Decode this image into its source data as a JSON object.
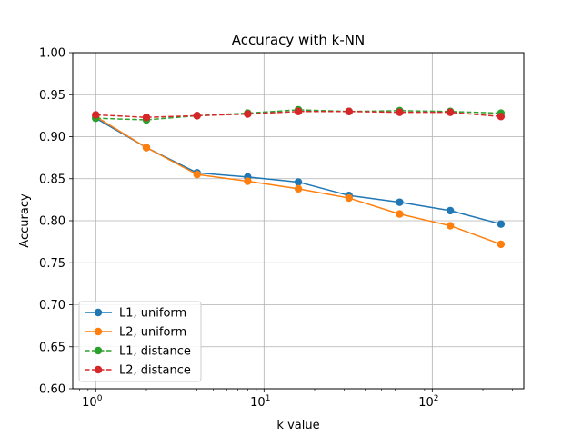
{
  "chart_data": {
    "type": "line",
    "title": "Accuracy with k-NN",
    "xlabel": "k value",
    "ylabel": "Accuracy",
    "xscale": "log",
    "xlim": [
      0.73,
      350
    ],
    "ylim": [
      0.6,
      1.0
    ],
    "grid": true,
    "legend_position": "lower-left",
    "x": [
      1,
      2,
      4,
      8,
      16,
      32,
      64,
      128,
      256
    ],
    "x_ticks": [
      {
        "value": 1,
        "base": "10",
        "exp": "0"
      },
      {
        "value": 10,
        "base": "10",
        "exp": "1"
      },
      {
        "value": 100,
        "base": "10",
        "exp": "2"
      }
    ],
    "y_ticks": [
      {
        "value": 0.6,
        "label": "0.60"
      },
      {
        "value": 0.65,
        "label": "0.65"
      },
      {
        "value": 0.7,
        "label": "0.70"
      },
      {
        "value": 0.75,
        "label": "0.75"
      },
      {
        "value": 0.8,
        "label": "0.80"
      },
      {
        "value": 0.85,
        "label": "0.85"
      },
      {
        "value": 0.9,
        "label": "0.90"
      },
      {
        "value": 0.95,
        "label": "0.95"
      },
      {
        "value": 1.0,
        "label": "1.00"
      }
    ],
    "series": [
      {
        "name": "L1, uniform",
        "color": "#1f77b4",
        "dashed": false,
        "values": [
          0.922,
          0.887,
          0.857,
          0.852,
          0.846,
          0.83,
          0.822,
          0.812,
          0.796
        ]
      },
      {
        "name": "L2, uniform",
        "color": "#ff7f0e",
        "dashed": false,
        "values": [
          0.924,
          0.887,
          0.855,
          0.847,
          0.838,
          0.827,
          0.808,
          0.794,
          0.772
        ]
      },
      {
        "name": "L1, distance",
        "color": "#2ca02c",
        "dashed": true,
        "values": [
          0.922,
          0.92,
          0.925,
          0.928,
          0.932,
          0.93,
          0.931,
          0.93,
          0.928
        ]
      },
      {
        "name": "L2, distance",
        "color": "#d62728",
        "dashed": true,
        "values": [
          0.926,
          0.923,
          0.925,
          0.927,
          0.93,
          0.93,
          0.929,
          0.929,
          0.924
        ]
      }
    ]
  }
}
